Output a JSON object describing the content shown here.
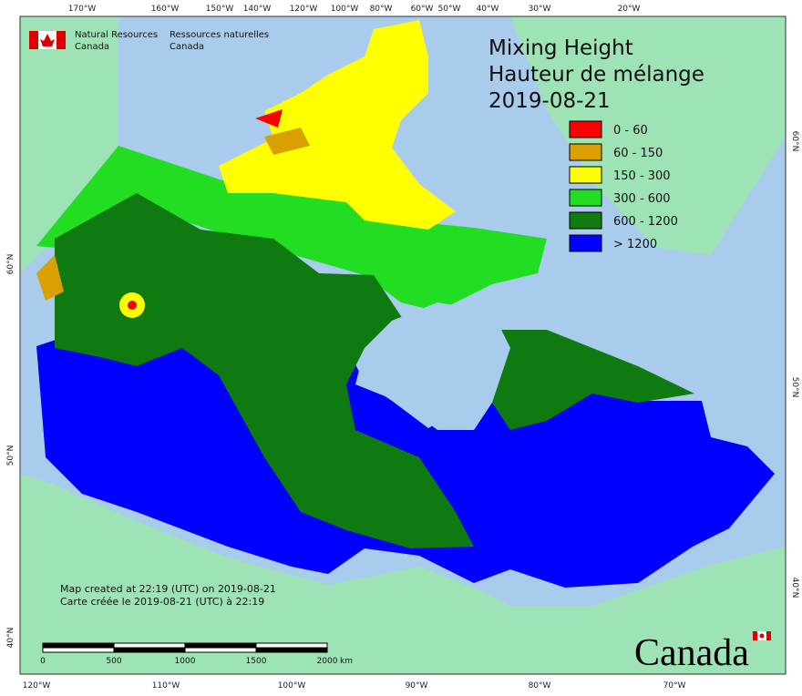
{
  "header": {
    "org_en": [
      "Natural Resources",
      "Canada"
    ],
    "org_fr": [
      "Ressources naturelles",
      "Canada"
    ]
  },
  "title": {
    "lines": [
      "Mixing Height",
      "Hauteur de mélange",
      "2019-08-21"
    ]
  },
  "legend": [
    {
      "label": "0 - 60",
      "color": "#ff0000"
    },
    {
      "label": "60 - 150",
      "color": "#d9a000"
    },
    {
      "label": "150 - 300",
      "color": "#ffff00"
    },
    {
      "label": "300 - 600",
      "color": "#22dd22"
    },
    {
      "label": "600 - 1200",
      "color": "#0f7a0f"
    },
    {
      "label": "> 1200",
      "color": "#0000ff"
    }
  ],
  "graticule": {
    "top": [
      "170°W",
      "160°W",
      "150°W",
      "140°W",
      "120°W",
      "100°W",
      "80°W",
      "60°W",
      "50°W",
      "40°W",
      "30°W",
      "20°W"
    ],
    "bottom": [
      "120°W",
      "110°W",
      "100°W",
      "90°W",
      "80°W",
      "70°W"
    ],
    "left": [
      "60°N",
      "50°N",
      "40°N"
    ],
    "right": [
      "60°N",
      "50°N",
      "40°N"
    ]
  },
  "scale_bar": {
    "labels": [
      "0",
      "500",
      "1000",
      "1500",
      "2000"
    ],
    "unit": "km"
  },
  "credits": [
    "Map created at 22:19 (UTC) on 2019-08-21",
    "Carte créée le 2019-08-21 (UTC) à 22:19"
  ],
  "wordmark": "Canada"
}
